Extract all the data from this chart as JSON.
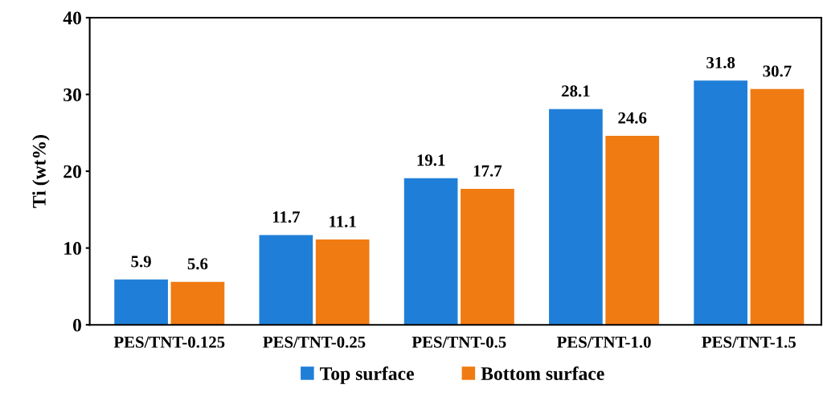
{
  "chart_data": {
    "type": "bar",
    "ylabel": "Ti (wt%)",
    "categories": [
      "PES/TNT-0.125",
      "PES/TNT-0.25",
      "PES/TNT-0.5",
      "PES/TNT-1.0",
      "PES/TNT-1.5"
    ],
    "series": [
      {
        "name": "Top surface",
        "color": "#1f7fd8",
        "values": [
          5.9,
          11.7,
          19.1,
          28.1,
          31.8
        ]
      },
      {
        "name": "Bottom surface",
        "color": "#f07b12",
        "values": [
          5.6,
          11.1,
          17.7,
          24.6,
          30.7
        ]
      }
    ],
    "ylim": [
      0,
      40
    ],
    "yticks": [
      0,
      10,
      20,
      30,
      40
    ],
    "data_labels": true,
    "grid": false,
    "legend": "bottom"
  }
}
